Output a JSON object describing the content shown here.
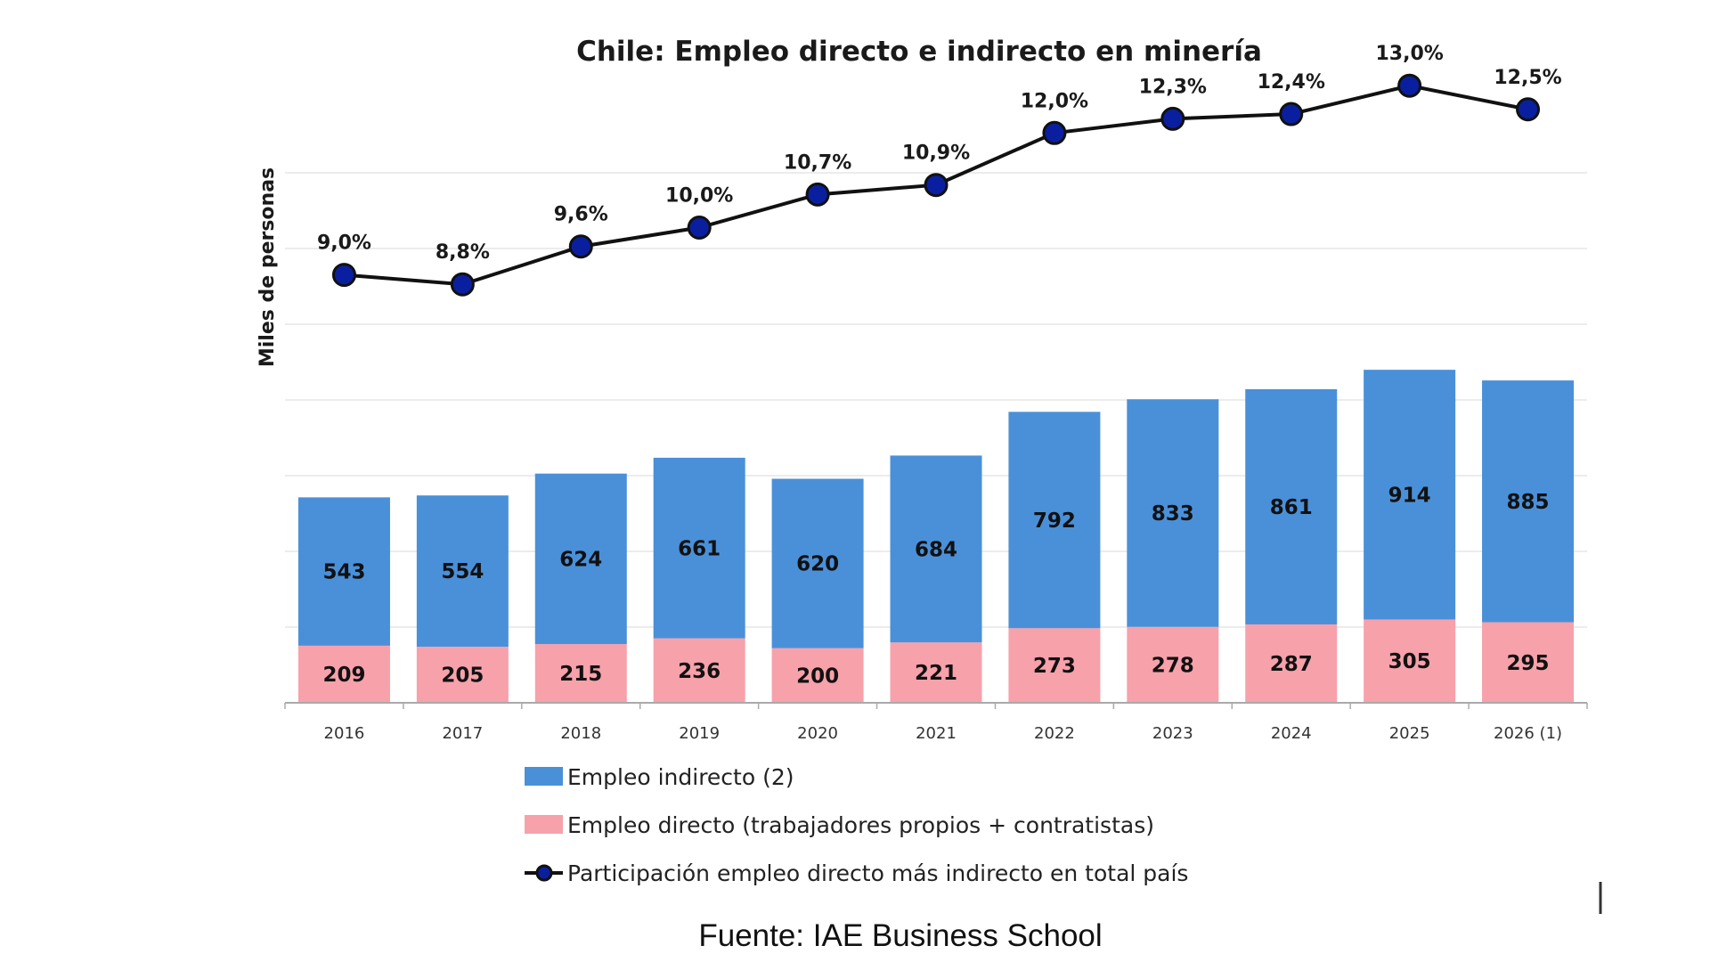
{
  "chart_data": {
    "type": "bar",
    "stacked": true,
    "title": "Chile: Empleo directo e indirecto en minería",
    "ylabel": "Miles de personas",
    "xlabel": "",
    "categories": [
      "2016",
      "2017",
      "2018",
      "2019",
      "2020",
      "2021",
      "2022",
      "2023",
      "2024",
      "2025",
      "2026 (1)"
    ],
    "series": [
      {
        "name": "Empleo directo (trabajadores propios + contratistas)",
        "color": "#f7a1ab",
        "values": [
          209,
          205,
          215,
          236,
          200,
          221,
          273,
          278,
          287,
          305,
          295
        ]
      },
      {
        "name": "Empleo indirecto (2)",
        "color": "#4a90d9",
        "values": [
          543,
          554,
          624,
          661,
          620,
          684,
          792,
          833,
          861,
          914,
          885
        ]
      }
    ],
    "line_series": {
      "name": "Participación empleo directo más indirecto en total país",
      "color": "#111111",
      "marker_color": "#0a1fa0",
      "values": [
        9.0,
        8.8,
        9.6,
        10.0,
        10.7,
        10.9,
        12.0,
        12.3,
        12.4,
        13.0,
        12.5
      ],
      "labels": [
        "9,0%",
        "8,8%",
        "9,6%",
        "10,0%",
        "10,7%",
        "10,9%",
        "12,0%",
        "12,3%",
        "12,4%",
        "13,0%",
        "12,5%"
      ]
    },
    "ylim": [
      0,
      1400
    ],
    "grid": true,
    "legend_position": "bottom"
  },
  "source": "Fuente: IAE Business School"
}
